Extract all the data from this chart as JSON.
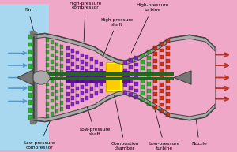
{
  "bg_pink": "#f0a8c8",
  "bg_blue": "#a8d8f0",
  "nacelle_color": "#888888",
  "nacelle_edge": "#444444",
  "labels": {
    "fan": "Fan",
    "hp_compressor": "High-pressure\ncompressor",
    "hp_turbine": "High-pressure\nturbine",
    "hp_shaft": "High-pressure\nshaft",
    "lp_compressor": "Low-pressure\ncompressor",
    "lp_shaft": "Low-pressure\nshaft",
    "combustion": "Combustion\nchamber",
    "lp_turbine": "Low-pressure\nturbine",
    "nozzle": "Nozzle"
  },
  "colors": {
    "green_dark": "#1a7a1a",
    "green_mid": "#33aa33",
    "green_light": "#66cc66",
    "purple_dark": "#550099",
    "purple_mid": "#8822cc",
    "purple_light": "#aa55ee",
    "red_dark": "#aa1100",
    "red_mid": "#cc3311",
    "red_light": "#ee6644",
    "yellow_bright": "#ffff00",
    "orange_bright": "#ffcc00",
    "yellow_gold": "#ddaa00",
    "gray_dark": "#444444",
    "gray_mid": "#777777",
    "gray_light": "#aaaaaa",
    "gray_pale": "#cccccc",
    "arrow_blue": "#5599cc",
    "arrow_pink": "#cc6688",
    "arrow_red": "#bb3322",
    "shaft_lp": "#226622",
    "shaft_hp": "#440088"
  }
}
